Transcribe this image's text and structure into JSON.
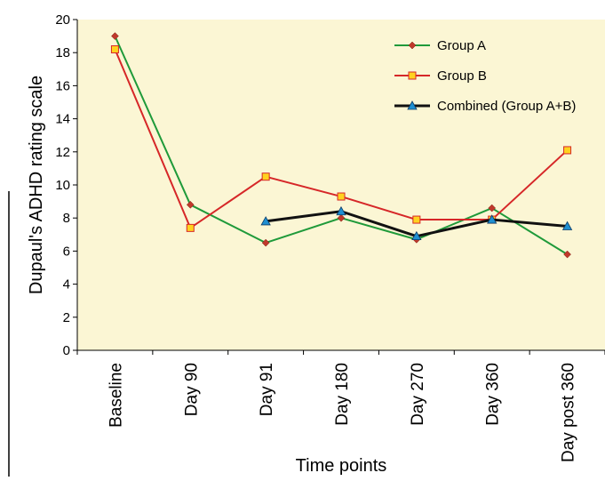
{
  "chart_data": {
    "type": "line",
    "xlabel": "Time points",
    "ylabel": "Dupaul's ADHD rating scale",
    "categories": [
      "Baseline",
      "Day 90",
      "Day 91",
      "Day 180",
      "Day 270",
      "Day 360",
      "Day post 360"
    ],
    "ylim": [
      0,
      20
    ],
    "yticks": [
      0,
      2,
      4,
      6,
      8,
      10,
      12,
      14,
      16,
      18,
      20
    ],
    "grid": false,
    "legend_position": "top-right",
    "plot_background": "#fbf6d4",
    "series": [
      {
        "name": "Group A",
        "color": "#1f9a3a",
        "marker": "diamond",
        "marker_color": "#c0392b",
        "values": [
          19.0,
          8.8,
          6.5,
          8.0,
          6.7,
          8.6,
          5.8
        ]
      },
      {
        "name": "Group B",
        "color": "#d62728",
        "marker": "square",
        "marker_color": "#ffd21f",
        "values": [
          18.2,
          7.4,
          10.5,
          9.3,
          7.9,
          7.9,
          12.1
        ]
      },
      {
        "name": "Combined (Group A+B)",
        "color": "#111111",
        "marker": "triangle",
        "marker_color": "#1f8fd1",
        "values": [
          null,
          null,
          7.8,
          8.4,
          6.9,
          7.9,
          7.5
        ]
      }
    ]
  }
}
